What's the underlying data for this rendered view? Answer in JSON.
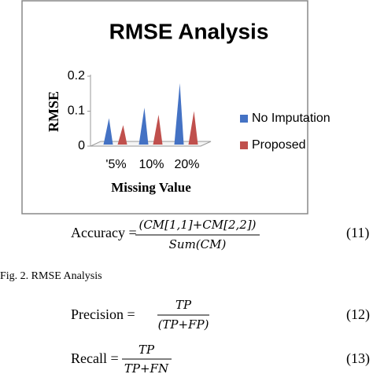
{
  "chart_data": {
    "type": "bar",
    "title": "RMSE Analysis",
    "y_label": "RMSE",
    "x_label": "Missing Value",
    "categories": [
      "'5%",
      "10%",
      "20%"
    ],
    "series": [
      {
        "name": "No Imputation",
        "color": "#4472c4",
        "values": [
          0.08,
          0.11,
          0.18
        ]
      },
      {
        "name": "Proposed",
        "color": "#c0504d",
        "values": [
          0.06,
          0.09,
          0.1
        ]
      }
    ],
    "ylim": [
      0,
      0.2
    ],
    "yticks": [
      0,
      0.1,
      0.2
    ],
    "legend": "right"
  },
  "document": {
    "eq11": {
      "lhs": "Accuracy =",
      "num": "(CM[1,1]+CM[2,2])",
      "den": "Sum(CM)",
      "number": "(11)"
    },
    "caption": "Fig. 2.   RMSE Analysis",
    "eq12": {
      "lhs": "Precision =",
      "num": "TP",
      "den": "(TP+FP)",
      "number": "(12)"
    },
    "eq13": {
      "lhs": "Recall =",
      "num": "TP",
      "den": "TP+FN",
      "number": "(13)"
    }
  }
}
